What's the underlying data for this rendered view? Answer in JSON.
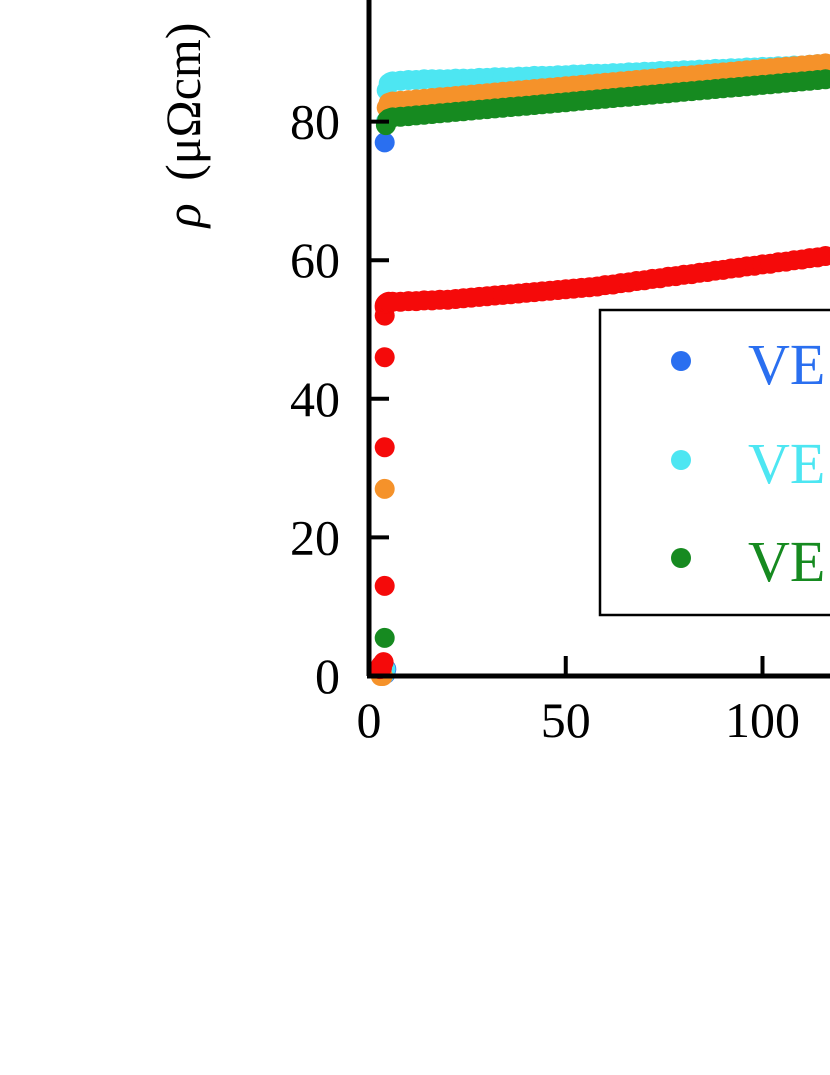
{
  "chart_data": {
    "type": "scatter",
    "ylabel_symbol": "ρ",
    "ylabel_unit": "(μΩcm)",
    "x_ticks": [
      "0",
      "50",
      "100"
    ],
    "y_ticks": [
      "0",
      "20",
      "40",
      "60",
      "80"
    ],
    "xlim": [
      0,
      117
    ],
    "ylim": [
      0,
      97
    ],
    "legend_position": "lower-right",
    "series": [
      {
        "name": "VE",
        "color": "#2a6ff0",
        "x": [
          4,
          4.2,
          4.4
        ],
        "y": [
          77,
          0.3,
          1
        ]
      },
      {
        "name": "VE",
        "color": "#4de6f2",
        "x": [
          4,
          4.2,
          4.3,
          4.5,
          5,
          5.5,
          6,
          8,
          10,
          12,
          14,
          16,
          18,
          20,
          22,
          24,
          26,
          28,
          30,
          32,
          34,
          36,
          38,
          40,
          42,
          44,
          46,
          48,
          50,
          52,
          54,
          56,
          58,
          60,
          62,
          64,
          66,
          68,
          70,
          72,
          74,
          76,
          78,
          80,
          82,
          84,
          86,
          88,
          90,
          92,
          94,
          96,
          98,
          100,
          102,
          104,
          106,
          108,
          110,
          112,
          114,
          116
        ],
        "y": [
          0.3,
          1,
          80,
          84.5,
          85.5,
          85.7,
          85.8,
          85.9,
          86,
          86,
          86.1,
          86.1,
          86.1,
          86.1,
          86.2,
          86.2,
          86.2,
          86.3,
          86.3,
          86.4,
          86.4,
          86.4,
          86.5,
          86.5,
          86.6,
          86.6,
          86.6,
          86.7,
          86.7,
          86.8,
          86.8,
          86.9,
          86.9,
          86.9,
          87,
          87,
          87.1,
          87.1,
          87.2,
          87.2,
          87.3,
          87.3,
          87.3,
          87.4,
          87.4,
          87.5,
          87.5,
          87.6,
          87.6,
          87.7,
          87.7,
          87.8,
          87.8,
          87.9,
          87.9,
          88,
          88,
          88.1,
          88.1,
          88.2,
          88.3,
          88.3
        ]
      },
      {
        "name": "",
        "color": "#f5922a",
        "x": [
          3,
          3.5,
          4,
          4.5,
          5,
          5.5,
          6,
          8,
          10,
          12,
          14,
          16,
          18,
          20,
          22,
          24,
          26,
          28,
          30,
          32,
          34,
          36,
          38,
          40,
          42,
          44,
          46,
          48,
          50,
          52,
          54,
          56,
          58,
          60,
          62,
          64,
          66,
          68,
          70,
          72,
          74,
          76,
          78,
          80,
          82,
          84,
          86,
          88,
          90,
          92,
          94,
          96,
          98,
          100,
          102,
          104,
          106,
          108,
          110,
          112,
          114,
          116
        ],
        "y": [
          0,
          0,
          27,
          82,
          82.7,
          82.8,
          82.9,
          83,
          83.1,
          83.2,
          83.3,
          83.4,
          83.5,
          83.6,
          83.7,
          83.8,
          83.9,
          84,
          84.1,
          84.2,
          84.3,
          84.4,
          84.5,
          84.6,
          84.7,
          84.8,
          84.9,
          85,
          85.1,
          85.2,
          85.3,
          85.4,
          85.5,
          85.6,
          85.7,
          85.8,
          85.9,
          86,
          86.1,
          86.2,
          86.3,
          86.4,
          86.5,
          86.6,
          86.7,
          86.8,
          86.9,
          87,
          87.1,
          87.2,
          87.3,
          87.4,
          87.5,
          87.6,
          87.7,
          87.8,
          87.9,
          88,
          88.1,
          88.2,
          88.3,
          88.4
        ]
      },
      {
        "name": "VE",
        "color": "#168a20",
        "x": [
          4,
          4.3,
          4.6,
          5,
          5.5,
          6,
          8,
          10,
          12,
          14,
          16,
          18,
          20,
          22,
          24,
          26,
          28,
          30,
          32,
          34,
          36,
          38,
          40,
          42,
          44,
          46,
          48,
          50,
          52,
          54,
          56,
          58,
          60,
          62,
          64,
          66,
          68,
          70,
          72,
          74,
          76,
          78,
          80,
          82,
          84,
          86,
          88,
          90,
          92,
          94,
          96,
          98,
          100,
          102,
          104,
          106,
          108,
          110,
          112,
          114,
          116
        ],
        "y": [
          5.5,
          79.5,
          80.2,
          80.4,
          80.5,
          80.6,
          80.7,
          80.8,
          80.9,
          81,
          81.1,
          81.2,
          81.3,
          81.4,
          81.5,
          81.6,
          81.7,
          81.8,
          81.9,
          82,
          82.1,
          82.2,
          82.3,
          82.4,
          82.5,
          82.6,
          82.7,
          82.8,
          82.9,
          83,
          83.1,
          83.2,
          83.3,
          83.4,
          83.5,
          83.6,
          83.7,
          83.8,
          83.9,
          84,
          84.1,
          84.2,
          84.3,
          84.4,
          84.5,
          84.6,
          84.7,
          84.8,
          84.9,
          85,
          85.1,
          85.2,
          85.3,
          85.4,
          85.5,
          85.6,
          85.7,
          85.8,
          85.9,
          86,
          86.1
        ]
      },
      {
        "name": "",
        "color": "#f50a0a",
        "x": [
          2.8,
          3,
          3.3,
          3.5,
          3.7,
          4,
          4,
          4,
          4,
          4,
          4,
          4.2,
          4.4,
          4.6,
          5,
          6,
          8,
          10,
          12,
          14,
          16,
          18,
          20,
          22,
          24,
          26,
          28,
          30,
          32,
          34,
          36,
          38,
          40,
          42,
          44,
          46,
          48,
          50,
          52,
          54,
          56,
          58,
          60,
          62,
          64,
          66,
          68,
          70,
          72,
          74,
          76,
          78,
          80,
          82,
          84,
          86,
          88,
          90,
          92,
          94,
          96,
          98,
          100,
          102,
          104,
          106,
          108,
          110,
          112,
          114,
          116
        ],
        "y": [
          1,
          1.5,
          1.2,
          1.8,
          2,
          13,
          33,
          46,
          52,
          53.2,
          53.5,
          53.7,
          53.8,
          53.9,
          54,
          54,
          54,
          54.1,
          54.1,
          54.2,
          54.2,
          54.3,
          54.3,
          54.4,
          54.5,
          54.6,
          54.7,
          54.8,
          54.9,
          55,
          55.1,
          55.2,
          55.3,
          55.4,
          55.5,
          55.6,
          55.7,
          55.8,
          55.9,
          56,
          56.1,
          56.2,
          56.4,
          56.5,
          56.7,
          56.8,
          57,
          57.1,
          57.3,
          57.4,
          57.6,
          57.7,
          57.9,
          58,
          58.2,
          58.3,
          58.5,
          58.6,
          58.8,
          58.9,
          59.1,
          59.2,
          59.4,
          59.5,
          59.7,
          59.8,
          60,
          60.1,
          60.3,
          60.4,
          60.6
        ]
      }
    ],
    "legend": [
      {
        "label": "VE",
        "color": "#2a6ff0"
      },
      {
        "label": "VE",
        "color": "#4de6f2"
      },
      {
        "label": "VE",
        "color": "#168a20"
      }
    ]
  }
}
